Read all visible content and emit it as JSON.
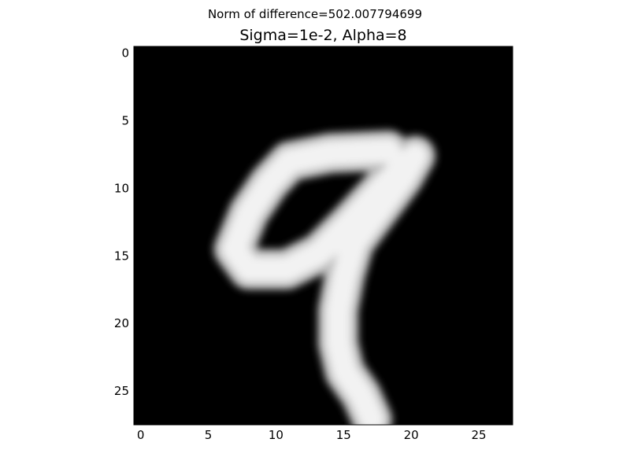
{
  "chart_data": {
    "type": "heatmap",
    "suptitle": "Norm of difference=502.007794699",
    "title": "Sigma=1e-2, Alpha=8",
    "colormap": "gray",
    "image_size": [
      28,
      28
    ],
    "xlim": [
      -0.5,
      27.5
    ],
    "ylim": [
      27.5,
      -0.5
    ],
    "xticks": [
      0,
      5,
      10,
      15,
      20,
      25
    ],
    "yticks": [
      0,
      5,
      10,
      15,
      20,
      25
    ],
    "xlabel": "",
    "ylabel": "",
    "description_digit": "9",
    "stroke": [
      [
        18.3,
        7.2
      ],
      [
        14,
        7.4
      ],
      [
        11,
        8
      ],
      [
        9.5,
        9.6
      ],
      [
        8,
        11.8
      ],
      [
        6.9,
        14.5
      ],
      [
        8,
        16
      ],
      [
        10.8,
        16
      ],
      [
        13.2,
        14.8
      ],
      [
        15.4,
        12.6
      ],
      [
        18,
        9.8
      ],
      [
        20.3,
        7.6
      ],
      [
        19.4,
        9.2
      ],
      [
        17.6,
        11.6
      ],
      [
        15.8,
        14
      ],
      [
        15.1,
        16.4
      ],
      [
        14.6,
        19
      ],
      [
        14.6,
        21.5
      ],
      [
        15.1,
        23.6
      ],
      [
        16.3,
        25.3
      ],
      [
        17.1,
        27.1
      ]
    ],
    "stroke_width": 2.4
  }
}
